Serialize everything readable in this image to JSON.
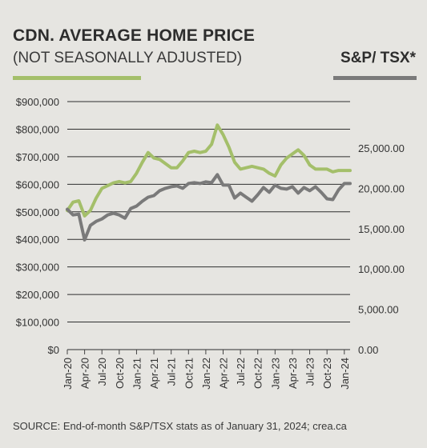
{
  "title": "CDN. AVERAGE HOME PRICE",
  "subtitle": "(NOT SEASONALLY ADJUSTED)",
  "right_legend": "S&P/ TSX*",
  "source": "SOURCE: End-of-month S&P/TSX stats as of January 31, 2024; crea.ca",
  "colors": {
    "home_price": "#a4bf6a",
    "sp_tsx": "#7a7a7a",
    "gridline": "#2f2f2f",
    "background": "#e6e5e1"
  },
  "chart_data": {
    "type": "line",
    "grid": true,
    "x_ticks": [
      "Jan-20",
      "Apr-20",
      "Jul-20",
      "Oct-20",
      "Jan-21",
      "Apr-21",
      "Jul-21",
      "Oct-21",
      "Jan-22",
      "Apr-22",
      "Jul-22",
      "Oct-22",
      "Jan-23",
      "Apr-23",
      "Jul-23",
      "Oct-23",
      "Jan-24"
    ],
    "x": [
      "Jan-20",
      "Feb-20",
      "Mar-20",
      "Apr-20",
      "May-20",
      "Jun-20",
      "Jul-20",
      "Aug-20",
      "Sep-20",
      "Oct-20",
      "Nov-20",
      "Dec-20",
      "Jan-21",
      "Feb-21",
      "Mar-21",
      "Apr-21",
      "May-21",
      "Jun-21",
      "Jul-21",
      "Aug-21",
      "Sep-21",
      "Oct-21",
      "Nov-21",
      "Dec-21",
      "Jan-22",
      "Feb-22",
      "Mar-22",
      "Apr-22",
      "May-22",
      "Jun-22",
      "Jul-22",
      "Aug-22",
      "Sep-22",
      "Oct-22",
      "Nov-22",
      "Dec-22",
      "Jan-23",
      "Feb-23",
      "Mar-23",
      "Apr-23",
      "May-23",
      "Jun-23",
      "Jul-23",
      "Aug-23",
      "Sep-23",
      "Oct-23",
      "Nov-23",
      "Dec-23",
      "Jan-24",
      "Feb-24"
    ],
    "y_left": {
      "ticks": [
        "$900,000",
        "$800,000",
        "$700,000",
        "$600,000",
        "$500,000",
        "$400,000",
        "$300,000",
        "$200,000",
        "$100,000",
        "$0"
      ],
      "range": [
        0,
        900000
      ]
    },
    "y_right": {
      "ticks": [
        "25,000.00",
        "20,000.00",
        "15,000.00",
        "10,000.00",
        "5,000.00",
        "0.00"
      ],
      "range": [
        0,
        25000
      ]
    },
    "series": [
      {
        "axis": "left",
        "values": [
          505000,
          535000,
          540000,
          485000,
          505000,
          550000,
          585000,
          595000,
          605000,
          610000,
          605000,
          610000,
          640000,
          680000,
          715000,
          695000,
          690000,
          675000,
          660000,
          660000,
          685000,
          715000,
          720000,
          715000,
          720000,
          745000,
          815000,
          780000,
          735000,
          680000,
          655000,
          660000,
          665000,
          660000,
          655000,
          640000,
          630000,
          670000,
          695000,
          710000,
          725000,
          705000,
          670000,
          655000,
          655000,
          655000,
          645000,
          650000,
          650000,
          650000
        ]
      },
      {
        "axis": "right",
        "values": [
          17400,
          16700,
          16800,
          13600,
          15400,
          15900,
          16200,
          16700,
          16900,
          16700,
          16300,
          17500,
          17800,
          18400,
          18900,
          19100,
          19700,
          20000,
          20200,
          20300,
          20000,
          20600,
          20700,
          20600,
          20800,
          20700,
          21700,
          20400,
          20400,
          18800,
          19400,
          18900,
          18400,
          19200,
          20100,
          19500,
          20400,
          20000,
          19900,
          20200,
          19400,
          20100,
          19700,
          20200,
          19500,
          18700,
          18600,
          19800,
          20600,
          20600
        ]
      }
    ]
  }
}
